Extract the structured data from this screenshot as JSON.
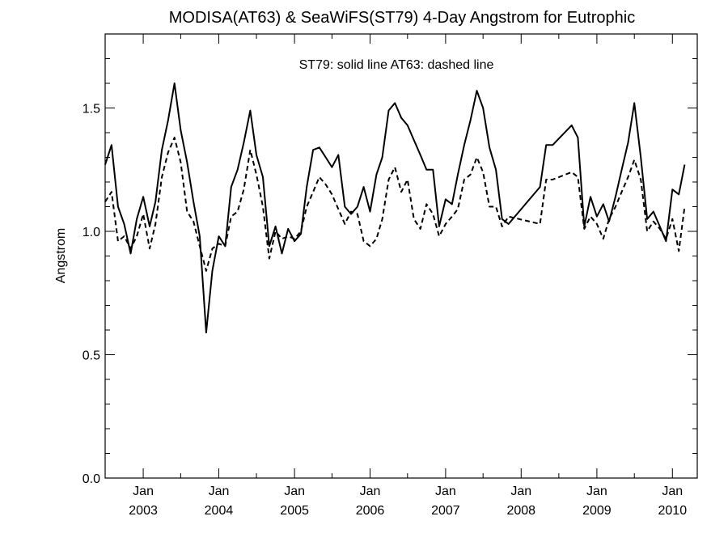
{
  "chart_data": {
    "type": "line",
    "title": "MODISA(AT63) & SeaWiFS(ST79) 4-Day Angstrom for Eutrophic",
    "annotation": "ST79: solid line   AT63: dashed line",
    "xlabel": "",
    "ylabel": "Angstrom",
    "xlim": [
      "2002-07-01",
      "2010-05-01"
    ],
    "ylim": [
      0.0,
      1.8
    ],
    "yticks": [
      0.0,
      0.5,
      1.0,
      1.5
    ],
    "ytick_labels": [
      "0.0",
      "0.5",
      "1.0",
      "1.5"
    ],
    "xticks": [
      {
        "date": "2003-01-01",
        "month": "Jan",
        "year": "2003"
      },
      {
        "date": "2004-01-01",
        "month": "Jan",
        "year": "2004"
      },
      {
        "date": "2005-01-01",
        "month": "Jan",
        "year": "2005"
      },
      {
        "date": "2006-01-01",
        "month": "Jan",
        "year": "2006"
      },
      {
        "date": "2007-01-01",
        "month": "Jan",
        "year": "2007"
      },
      {
        "date": "2008-01-01",
        "month": "Jan",
        "year": "2008"
      },
      {
        "date": "2009-01-01",
        "month": "Jan",
        "year": "2009"
      },
      {
        "date": "2010-01-01",
        "month": "Jan",
        "year": "2010"
      }
    ],
    "series": [
      {
        "name": "ST79",
        "style": "solid",
        "color": "#000000",
        "points": [
          [
            "2002-07-01",
            1.27
          ],
          [
            "2002-08-01",
            1.35
          ],
          [
            "2002-09-01",
            1.1
          ],
          [
            "2002-10-01",
            1.03
          ],
          [
            "2002-11-01",
            0.91
          ],
          [
            "2002-12-01",
            1.05
          ],
          [
            "2003-01-01",
            1.14
          ],
          [
            "2003-02-01",
            1.02
          ],
          [
            "2003-03-01",
            1.12
          ],
          [
            "2003-04-01",
            1.33
          ],
          [
            "2003-05-01",
            1.45
          ],
          [
            "2003-06-01",
            1.6
          ],
          [
            "2003-07-01",
            1.41
          ],
          [
            "2003-08-01",
            1.28
          ],
          [
            "2003-09-01",
            1.12
          ],
          [
            "2003-10-01",
            0.98
          ],
          [
            "2003-11-01",
            0.59
          ],
          [
            "2003-12-01",
            0.84
          ],
          [
            "2004-01-01",
            0.98
          ],
          [
            "2004-02-01",
            0.94
          ],
          [
            "2004-03-01",
            1.18
          ],
          [
            "2004-04-01",
            1.25
          ],
          [
            "2004-05-01",
            1.36
          ],
          [
            "2004-06-01",
            1.49
          ],
          [
            "2004-07-01",
            1.31
          ],
          [
            "2004-08-01",
            1.22
          ],
          [
            "2004-09-01",
            0.94
          ],
          [
            "2004-10-01",
            1.02
          ],
          [
            "2004-11-01",
            0.91
          ],
          [
            "2004-12-01",
            1.01
          ],
          [
            "2005-01-01",
            0.96
          ],
          [
            "2005-02-01",
            0.99
          ],
          [
            "2005-03-01",
            1.18
          ],
          [
            "2005-04-01",
            1.33
          ],
          [
            "2005-05-01",
            1.34
          ],
          [
            "2005-06-01",
            1.3
          ],
          [
            "2005-07-01",
            1.26
          ],
          [
            "2005-08-01",
            1.31
          ],
          [
            "2005-09-01",
            1.1
          ],
          [
            "2005-10-01",
            1.07
          ],
          [
            "2005-11-01",
            1.1
          ],
          [
            "2005-12-01",
            1.18
          ],
          [
            "2006-01-01",
            1.08
          ],
          [
            "2006-02-01",
            1.23
          ],
          [
            "2006-03-01",
            1.3
          ],
          [
            "2006-04-01",
            1.49
          ],
          [
            "2006-05-01",
            1.52
          ],
          [
            "2006-06-01",
            1.46
          ],
          [
            "2006-07-01",
            1.43
          ],
          [
            "2006-08-01",
            1.37
          ],
          [
            "2006-09-01",
            1.31
          ],
          [
            "2006-10-01",
            1.25
          ],
          [
            "2006-11-01",
            1.25
          ],
          [
            "2006-12-01",
            1.02
          ],
          [
            "2007-01-01",
            1.13
          ],
          [
            "2007-02-01",
            1.11
          ],
          [
            "2007-03-01",
            1.23
          ],
          [
            "2007-04-01",
            1.35
          ],
          [
            "2007-05-01",
            1.45
          ],
          [
            "2007-06-01",
            1.57
          ],
          [
            "2007-07-01",
            1.5
          ],
          [
            "2007-08-01",
            1.34
          ],
          [
            "2007-09-01",
            1.25
          ],
          [
            "2007-10-01",
            1.05
          ],
          [
            "2007-11-01",
            1.03
          ],
          [
            "2008-04-01",
            1.18
          ],
          [
            "2008-05-01",
            1.35
          ],
          [
            "2008-06-01",
            1.35
          ],
          [
            "2008-09-01",
            1.43
          ],
          [
            "2008-10-01",
            1.38
          ],
          [
            "2008-11-01",
            1.02
          ],
          [
            "2008-12-01",
            1.14
          ],
          [
            "2009-01-01",
            1.06
          ],
          [
            "2009-02-01",
            1.11
          ],
          [
            "2009-03-01",
            1.04
          ],
          [
            "2009-04-01",
            1.14
          ],
          [
            "2009-05-01",
            1.25
          ],
          [
            "2009-06-01",
            1.36
          ],
          [
            "2009-07-01",
            1.52
          ],
          [
            "2009-08-01",
            1.3
          ],
          [
            "2009-09-01",
            1.05
          ],
          [
            "2009-10-01",
            1.08
          ],
          [
            "2009-11-01",
            1.02
          ],
          [
            "2009-12-01",
            0.96
          ],
          [
            "2010-01-01",
            1.17
          ],
          [
            "2010-02-01",
            1.15
          ],
          [
            "2010-03-01",
            1.27
          ]
        ]
      },
      {
        "name": "AT63",
        "style": "dashed",
        "color": "#000000",
        "points": [
          [
            "2002-07-01",
            1.12
          ],
          [
            "2002-08-01",
            1.16
          ],
          [
            "2002-09-01",
            0.96
          ],
          [
            "2002-10-01",
            0.98
          ],
          [
            "2002-11-01",
            0.93
          ],
          [
            "2002-12-01",
            0.98
          ],
          [
            "2003-01-01",
            1.07
          ],
          [
            "2003-02-01",
            0.93
          ],
          [
            "2003-03-01",
            1.03
          ],
          [
            "2003-04-01",
            1.22
          ],
          [
            "2003-05-01",
            1.32
          ],
          [
            "2003-06-01",
            1.38
          ],
          [
            "2003-07-01",
            1.28
          ],
          [
            "2003-08-01",
            1.08
          ],
          [
            "2003-09-01",
            1.04
          ],
          [
            "2003-10-01",
            0.94
          ],
          [
            "2003-11-01",
            0.84
          ],
          [
            "2003-12-01",
            0.93
          ],
          [
            "2004-01-01",
            0.95
          ],
          [
            "2004-02-01",
            0.94
          ],
          [
            "2004-03-01",
            1.06
          ],
          [
            "2004-04-01",
            1.08
          ],
          [
            "2004-05-01",
            1.17
          ],
          [
            "2004-06-01",
            1.33
          ],
          [
            "2004-07-01",
            1.23
          ],
          [
            "2004-08-01",
            1.1
          ],
          [
            "2004-09-01",
            0.89
          ],
          [
            "2004-10-01",
            1.0
          ],
          [
            "2004-11-01",
            0.97
          ],
          [
            "2004-12-01",
            0.98
          ],
          [
            "2005-01-01",
            0.97
          ],
          [
            "2005-02-01",
            1.0
          ],
          [
            "2005-03-01",
            1.1
          ],
          [
            "2005-04-01",
            1.16
          ],
          [
            "2005-05-01",
            1.22
          ],
          [
            "2005-06-01",
            1.19
          ],
          [
            "2005-07-01",
            1.15
          ],
          [
            "2005-08-01",
            1.09
          ],
          [
            "2005-09-01",
            1.03
          ],
          [
            "2005-10-01",
            1.08
          ],
          [
            "2005-11-01",
            1.07
          ],
          [
            "2005-12-01",
            0.96
          ],
          [
            "2006-01-01",
            0.94
          ],
          [
            "2006-02-01",
            0.97
          ],
          [
            "2006-03-01",
            1.05
          ],
          [
            "2006-04-01",
            1.21
          ],
          [
            "2006-05-01",
            1.26
          ],
          [
            "2006-06-01",
            1.16
          ],
          [
            "2006-07-01",
            1.21
          ],
          [
            "2006-08-01",
            1.05
          ],
          [
            "2006-09-01",
            1.01
          ],
          [
            "2006-10-01",
            1.11
          ],
          [
            "2006-11-01",
            1.07
          ],
          [
            "2006-12-01",
            0.98
          ],
          [
            "2007-01-01",
            1.03
          ],
          [
            "2007-02-01",
            1.06
          ],
          [
            "2007-03-01",
            1.09
          ],
          [
            "2007-04-01",
            1.21
          ],
          [
            "2007-05-01",
            1.23
          ],
          [
            "2007-06-01",
            1.3
          ],
          [
            "2007-07-01",
            1.24
          ],
          [
            "2007-08-01",
            1.1
          ],
          [
            "2007-09-01",
            1.1
          ],
          [
            "2007-10-01",
            1.02
          ],
          [
            "2007-11-01",
            1.06
          ],
          [
            "2008-04-01",
            1.03
          ],
          [
            "2008-05-01",
            1.21
          ],
          [
            "2008-06-01",
            1.21
          ],
          [
            "2008-09-01",
            1.24
          ],
          [
            "2008-10-01",
            1.22
          ],
          [
            "2008-11-01",
            1.01
          ],
          [
            "2008-12-01",
            1.06
          ],
          [
            "2009-01-01",
            1.03
          ],
          [
            "2009-02-01",
            0.97
          ],
          [
            "2009-03-01",
            1.05
          ],
          [
            "2009-04-01",
            1.1
          ],
          [
            "2009-05-01",
            1.16
          ],
          [
            "2009-06-01",
            1.22
          ],
          [
            "2009-07-01",
            1.29
          ],
          [
            "2009-08-01",
            1.21
          ],
          [
            "2009-09-01",
            1.0
          ],
          [
            "2009-10-01",
            1.04
          ],
          [
            "2009-11-01",
            1.01
          ],
          [
            "2009-12-01",
            0.97
          ],
          [
            "2010-01-01",
            1.05
          ],
          [
            "2010-02-01",
            0.92
          ],
          [
            "2010-03-01",
            1.1
          ]
        ]
      }
    ]
  }
}
